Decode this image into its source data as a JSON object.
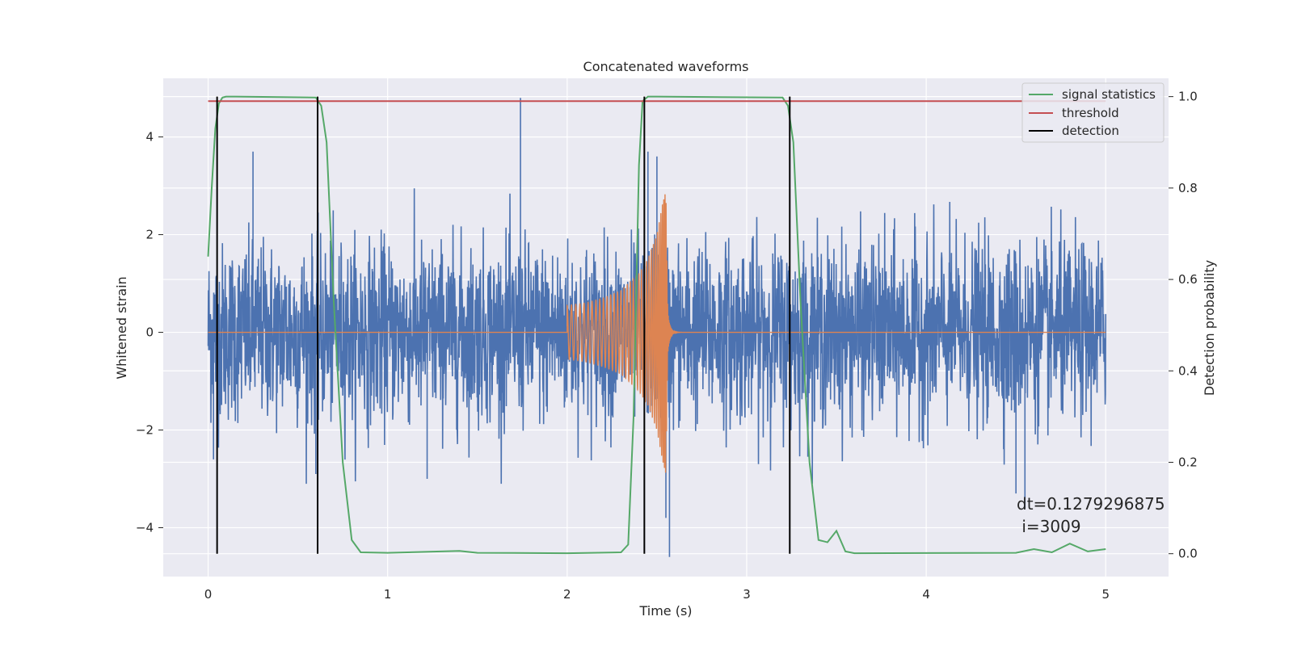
{
  "chart_data": {
    "type": "line",
    "title": "Concatenated waveforms",
    "xlabel": "Time (s)",
    "ylabel_left": "Whitened strain",
    "ylabel_right": "Detection probability",
    "xlim": [
      -0.25,
      5.35
    ],
    "ylim_left": [
      -5.0,
      5.2
    ],
    "ylim_right": [
      -0.05,
      1.04
    ],
    "x_ticks": [
      0,
      1,
      2,
      3,
      4,
      5
    ],
    "x_tick_labels": [
      "0",
      "1",
      "2",
      "3",
      "4",
      "5"
    ],
    "y_left_ticks": [
      -4,
      -2,
      0,
      2,
      4
    ],
    "y_left_tick_labels": [
      "−4",
      "−2",
      "0",
      "2",
      "4"
    ],
    "y_right_ticks": [
      0.0,
      0.2,
      0.4,
      0.6,
      0.8,
      1.0
    ],
    "y_right_tick_labels": [
      "0.0",
      "0.2",
      "0.4",
      "0.6",
      "0.8",
      "1.0"
    ],
    "grid": true,
    "legend_position": "top-right",
    "legend": [
      {
        "label": "signal statistics",
        "color": "#55a868"
      },
      {
        "label": "threshold",
        "color": "#c44e52"
      },
      {
        "label": "detection",
        "color": "#000000"
      }
    ],
    "annotation": {
      "line1": "dt=0.1279296875",
      "line2": " i=3009"
    },
    "series": [
      {
        "id": "whitened-strain-noise",
        "axis": "left",
        "color": "#4c72b0",
        "x_range": [
          0,
          5
        ],
        "peaks_high": [
          [
            0.25,
            3.7
          ],
          [
            1.74,
            4.8
          ],
          [
            2.45,
            3.7
          ],
          [
            2.5,
            3.6
          ]
        ],
        "peaks_low": [
          [
            0.03,
            -2.6
          ],
          [
            0.6,
            -2.9
          ],
          [
            1.22,
            -3.0
          ],
          [
            2.55,
            -3.8
          ],
          [
            4.5,
            -3.3
          ],
          [
            4.55,
            -3.6
          ],
          [
            2.57,
            -4.6
          ]
        ]
      },
      {
        "id": "injected-chirp",
        "axis": "left",
        "color": "#dd8452",
        "x": [
          2.0,
          2.1,
          2.2,
          2.3,
          2.4,
          2.45,
          2.5,
          2.53,
          2.55,
          2.56,
          2.6,
          3.0
        ],
        "envelope": [
          0.55,
          0.6,
          0.7,
          0.85,
          1.2,
          1.5,
          2.0,
          2.6,
          2.9,
          0.5,
          0.0,
          0.0
        ]
      },
      {
        "id": "signal-statistics",
        "axis": "right",
        "color": "#55a868",
        "x": [
          0.0,
          0.02,
          0.04,
          0.06,
          0.08,
          0.1,
          0.15,
          0.6,
          0.63,
          0.66,
          0.7,
          0.75,
          0.8,
          0.85,
          1.0,
          1.4,
          1.5,
          2.0,
          2.3,
          2.34,
          2.37,
          2.4,
          2.42,
          2.45,
          2.5,
          3.2,
          3.23,
          3.26,
          3.3,
          3.35,
          3.4,
          3.45,
          3.5,
          3.55,
          3.6,
          4.5,
          4.6,
          4.7,
          4.8,
          4.9,
          5.0
        ],
        "y": [
          0.65,
          0.8,
          0.93,
          0.985,
          0.998,
          1.0,
          1.0,
          0.998,
          0.98,
          0.9,
          0.55,
          0.2,
          0.03,
          0.003,
          0.002,
          0.006,
          0.002,
          0.001,
          0.003,
          0.02,
          0.3,
          0.85,
          0.99,
          1.0,
          1.0,
          0.998,
          0.98,
          0.9,
          0.55,
          0.2,
          0.03,
          0.025,
          0.05,
          0.005,
          0.001,
          0.002,
          0.01,
          0.003,
          0.022,
          0.005,
          0.01
        ]
      },
      {
        "id": "threshold",
        "axis": "right",
        "color": "#c44e52",
        "x": [
          0,
          5
        ],
        "y": [
          0.99,
          0.99
        ]
      }
    ],
    "detections": [
      0.05,
      0.61,
      2.43,
      3.24
    ],
    "detection_color": "#000000"
  }
}
